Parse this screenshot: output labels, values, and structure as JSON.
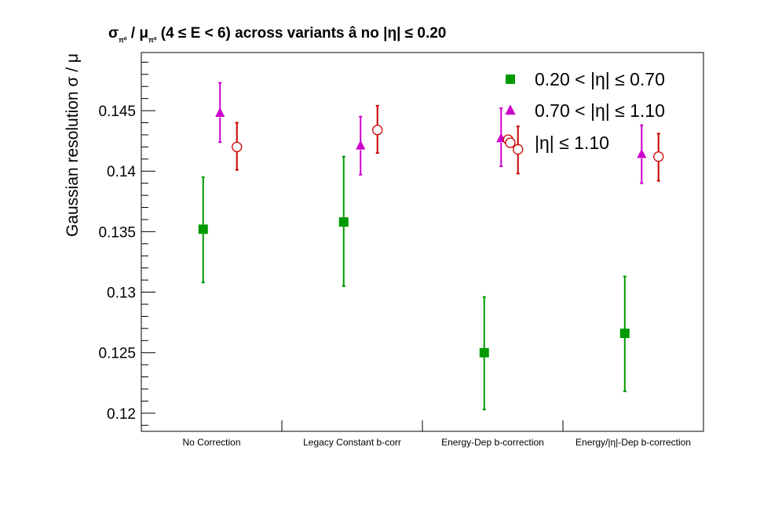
{
  "chart_data": {
    "type": "scatter",
    "title": "σ_π⁰ / μ_π⁰ (4 ≤ E < 6) across variants  â  no |η| ≤ 0.20",
    "title_parts": {
      "sigma": "σ",
      "sub1": "π⁰",
      "slash": " / ",
      "mu": "μ",
      "sub2": "π⁰",
      "rest": " (4 ≤ E < 6) across variants  â  no |η| ≤ 0.20"
    },
    "xlabel": "",
    "ylabel": "Gaussian resolution  σ / μ",
    "ylim": [
      0.1185,
      0.1498
    ],
    "yticks": [
      0.12,
      0.125,
      0.13,
      0.135,
      0.14,
      0.145
    ],
    "ytick_labels": [
      "0.12",
      "0.125",
      "0.13",
      "0.135",
      "0.14",
      "0.145"
    ],
    "categories": [
      "No Correction",
      "Legacy Constant b-corr",
      "Energy-Dep b-correction",
      "Energy/|η|-Dep b-correction"
    ],
    "grid": false,
    "legend_position": "top-right",
    "series": [
      {
        "name": "0.20 < |η| ≤ 0.70",
        "marker": "square",
        "color": "#009900",
        "points": [
          {
            "cat": 0,
            "offset": 0.0,
            "y": 0.1352,
            "lo": 0.1308,
            "hi": 0.1395
          },
          {
            "cat": 1,
            "offset": 0.0,
            "y": 0.1358,
            "lo": 0.1305,
            "hi": 0.1412
          },
          {
            "cat": 2,
            "offset": 0.0,
            "y": 0.125,
            "lo": 0.1203,
            "hi": 0.1296
          },
          {
            "cat": 3,
            "offset": 0.0,
            "y": 0.1266,
            "lo": 0.1218,
            "hi": 0.1313
          }
        ]
      },
      {
        "name": "0.70 < |η| ≤ 1.10",
        "marker": "triangle",
        "color": "#cc00cc",
        "points": [
          {
            "cat": 0,
            "offset": 0.12,
            "y": 0.1448,
            "lo": 0.1424,
            "hi": 0.1473
          },
          {
            "cat": 1,
            "offset": 0.12,
            "y": 0.1421,
            "lo": 0.1397,
            "hi": 0.1445
          },
          {
            "cat": 2,
            "offset": 0.12,
            "y": 0.1427,
            "lo": 0.1404,
            "hi": 0.1452
          },
          {
            "cat": 3,
            "offset": 0.12,
            "y": 0.1414,
            "lo": 0.139,
            "hi": 0.1438
          }
        ]
      },
      {
        "name": "|η| ≤ 1.10",
        "marker": "open-circle",
        "color": "#cc0000",
        "points": [
          {
            "cat": 0,
            "offset": 0.24,
            "y": 0.142,
            "lo": 0.1401,
            "hi": 0.144
          },
          {
            "cat": 1,
            "offset": 0.24,
            "y": 0.1434,
            "lo": 0.1415,
            "hi": 0.1454
          },
          {
            "cat": 2,
            "offset": 0.24,
            "y": 0.1418,
            "lo": 0.1398,
            "hi": 0.1437
          },
          {
            "cat": 3,
            "offset": 0.24,
            "y": 0.1412,
            "lo": 0.1392,
            "hi": 0.1431
          }
        ]
      }
    ],
    "stray_points": [
      {
        "marker": "open-circle",
        "color": "#cc0000",
        "cat": 2,
        "offset": 0.17,
        "y": 0.1426
      }
    ]
  }
}
